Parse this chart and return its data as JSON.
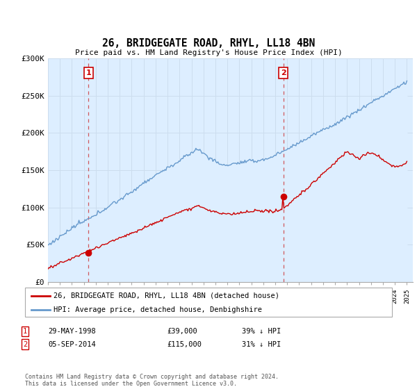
{
  "title": "26, BRIDGEGATE ROAD, RHYL, LL18 4BN",
  "subtitle": "Price paid vs. HM Land Registry's House Price Index (HPI)",
  "legend_line1": "26, BRIDGEGATE ROAD, RHYL, LL18 4BN (detached house)",
  "legend_line2": "HPI: Average price, detached house, Denbighshire",
  "transaction1_date": "29-MAY-1998",
  "transaction1_price": "£39,000",
  "transaction1_note": "39% ↓ HPI",
  "transaction1_year": 1998.38,
  "transaction1_value": 39000,
  "transaction2_date": "05-SEP-2014",
  "transaction2_price": "£115,000",
  "transaction2_note": "31% ↓ HPI",
  "transaction2_year": 2014.67,
  "transaction2_value": 115000,
  "footer": "Contains HM Land Registry data © Crown copyright and database right 2024.\nThis data is licensed under the Open Government Licence v3.0.",
  "line_color_red": "#cc0000",
  "line_color_blue": "#6699cc",
  "fill_color_blue": "#ddeeff",
  "marker_color_red": "#cc0000",
  "vline_color": "#cc3333",
  "background_color": "#ffffff",
  "grid_color": "#ccddee",
  "ylim": [
    0,
    300000
  ],
  "xlim_start": 1995,
  "xlim_end": 2025.5
}
